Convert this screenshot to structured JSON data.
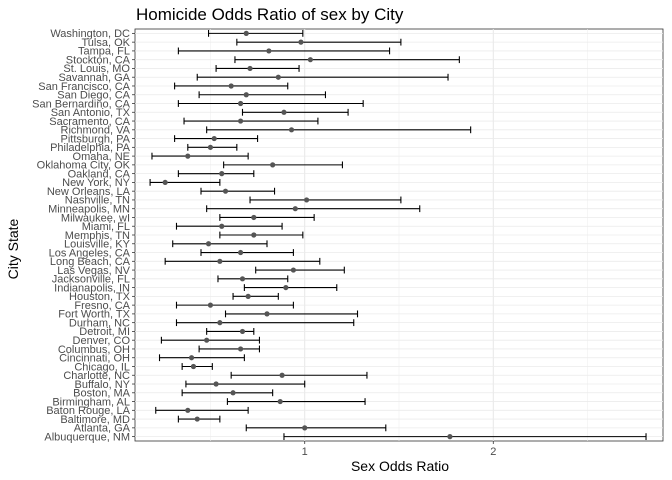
{
  "chart_data": {
    "type": "scatter",
    "title": "Homicide Odds Ratio of sex by City",
    "xlabel": "Sex Odds Ratio",
    "ylabel": "City State",
    "xlim": [
      0.1,
      2.9
    ],
    "x_ticks": [
      1,
      2
    ],
    "grid": true,
    "legend": "none",
    "point_color": "#555555",
    "error_bar_color": "#000000",
    "categories": [
      "Washington, DC",
      "Tulsa, OK",
      "Tampa, FL",
      "Stockton, CA",
      "St. Louis, MO",
      "Savannah, GA",
      "San Francisco, CA",
      "San Diego, CA",
      "San Bernardino, CA",
      "San Antonio, TX",
      "Sacramento, CA",
      "Richmond, VA",
      "Pittsburgh, PA",
      "Philadelphia, PA",
      "Omaha, NE",
      "Oklahoma City, OK",
      "Oakland, CA",
      "New York, NY",
      "New Orleans, LA",
      "Nashville, TN",
      "Minneapolis, MN",
      "Milwaukee, wI",
      "Miami, FL",
      "Memphis, TN",
      "Louisville, KY",
      "Los Angeles, CA",
      "Long Beach, CA",
      "Las Vegas, NV",
      "Jacksonville, FL",
      "Indianapolis, IN",
      "Houston, TX",
      "Fresno, CA",
      "Fort Worth, TX",
      "Durham, NC",
      "Detroit, MI",
      "Denver, CO",
      "Columbus, OH",
      "Cincinnati, OH",
      "Chicago, IL",
      "Charlotte, NC",
      "Buffalo, NY",
      "Boston, MA",
      "Birmingham, AL",
      "Baton Rouge, LA",
      "Baltimore, MD",
      "Atlanta, GA",
      "Albuquerque, NM"
    ],
    "estimate": [
      0.69,
      0.98,
      0.81,
      1.03,
      0.71,
      0.86,
      0.61,
      0.69,
      0.66,
      0.89,
      0.66,
      0.93,
      0.52,
      0.5,
      0.38,
      0.83,
      0.56,
      0.26,
      0.58,
      1.01,
      0.95,
      0.73,
      0.56,
      0.73,
      0.49,
      0.66,
      0.55,
      0.94,
      0.67,
      0.9,
      0.7,
      0.5,
      0.8,
      0.55,
      0.67,
      0.48,
      0.66,
      0.4,
      0.41,
      0.88,
      0.53,
      0.62,
      0.87,
      0.38,
      0.43,
      1.0,
      1.77
    ],
    "ci_low": [
      0.49,
      0.64,
      0.33,
      0.63,
      0.53,
      0.43,
      0.31,
      0.44,
      0.33,
      0.67,
      0.36,
      0.48,
      0.31,
      0.38,
      0.19,
      0.57,
      0.33,
      0.18,
      0.45,
      0.71,
      0.48,
      0.55,
      0.32,
      0.55,
      0.3,
      0.45,
      0.26,
      0.74,
      0.54,
      0.68,
      0.62,
      0.32,
      0.58,
      0.32,
      0.48,
      0.24,
      0.44,
      0.23,
      0.35,
      0.61,
      0.37,
      0.35,
      0.59,
      0.21,
      0.33,
      0.69,
      0.89
    ],
    "ci_high": [
      0.99,
      1.51,
      1.45,
      1.82,
      0.97,
      1.76,
      0.91,
      1.11,
      1.31,
      1.23,
      1.07,
      1.88,
      0.75,
      0.64,
      0.7,
      1.2,
      0.73,
      0.55,
      0.84,
      1.51,
      1.61,
      1.05,
      0.88,
      0.99,
      0.8,
      0.94,
      1.08,
      1.21,
      0.91,
      1.17,
      0.86,
      0.94,
      1.28,
      1.26,
      0.73,
      0.76,
      0.76,
      0.68,
      0.51,
      1.33,
      1.0,
      0.83,
      1.32,
      0.7,
      0.55,
      1.43,
      2.81
    ]
  }
}
